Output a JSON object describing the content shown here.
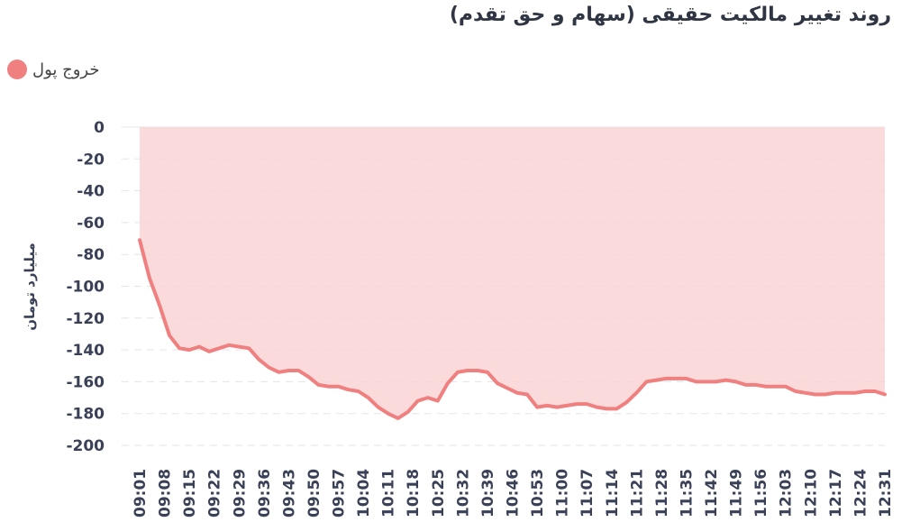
{
  "chart_data": {
    "type": "area",
    "title": "روند تغییر مالکیت حقیقی (سهام و حق تقدم)",
    "ylabel": "میلیارد تومان",
    "xlabel": "",
    "ylim": [
      -200,
      0
    ],
    "yticks": [
      "0",
      "-20",
      "-40",
      "-60",
      "-80",
      "-100",
      "-120",
      "-140",
      "-160",
      "-180",
      "-200"
    ],
    "xticks": [
      "09:01",
      "09:08",
      "09:15",
      "09:22",
      "09:29",
      "09:36",
      "09:43",
      "09:50",
      "09:57",
      "10:04",
      "10:11",
      "10:18",
      "10:25",
      "10:32",
      "10:39",
      "10:46",
      "10:53",
      "11:00",
      "11:07",
      "11:14",
      "11:21",
      "11:28",
      "11:35",
      "11:42",
      "11:49",
      "11:56",
      "12:03",
      "12:10",
      "12:17",
      "12:24",
      "12:31"
    ],
    "legend": {
      "position": "top-left"
    },
    "grid": true,
    "series": [
      {
        "name": "خروج پول",
        "color": "#f08080",
        "fill": "#f9d3d3",
        "x_index": [
          0,
          0.4,
          0.8,
          1.2,
          1.6,
          2.0,
          2.4,
          2.8,
          3.2,
          3.6,
          4.0,
          4.4,
          4.8,
          5.2,
          5.6,
          6.0,
          6.4,
          6.8,
          7.2,
          7.6,
          8.0,
          8.4,
          8.8,
          9.2,
          9.6,
          10.0,
          10.4,
          10.8,
          11.2,
          11.6,
          12.0,
          12.4,
          12.8,
          13.2,
          13.6,
          14.0,
          14.4,
          14.8,
          15.2,
          15.6,
          16.0,
          16.4,
          16.8,
          17.2,
          17.6,
          18.0,
          18.4,
          18.8,
          19.2,
          19.6,
          20.0,
          20.4,
          20.8,
          21.2,
          21.6,
          22.0,
          22.4,
          22.8,
          23.2,
          23.6,
          24.0,
          24.4,
          24.8,
          25.2,
          25.6,
          26.0,
          26.4,
          26.8,
          27.2,
          27.6,
          28.0,
          28.4,
          28.8,
          29.2,
          29.6,
          30.0
        ],
        "values": [
          -71,
          -95,
          -112,
          -131,
          -139,
          -140,
          -138,
          -141,
          -139,
          -137,
          -138,
          -139,
          -146,
          -151,
          -154,
          -153,
          -153,
          -157,
          -162,
          -163,
          -163,
          -165,
          -166,
          -170,
          -176,
          -180,
          -183,
          -179,
          -172,
          -170,
          -172,
          -161,
          -154,
          -153,
          -153,
          -154,
          -161,
          -164,
          -167,
          -168,
          -176,
          -175,
          -176,
          -175,
          -174,
          -174,
          -176,
          -177,
          -177,
          -173,
          -167,
          -160,
          -159,
          -158,
          -158,
          -158,
          -160,
          -160,
          -160,
          -159,
          -160,
          -162,
          -162,
          -163,
          -163,
          -163,
          -166,
          -167,
          -168,
          -168,
          -167,
          -167,
          -167,
          -166,
          -166,
          -168
        ]
      }
    ]
  }
}
